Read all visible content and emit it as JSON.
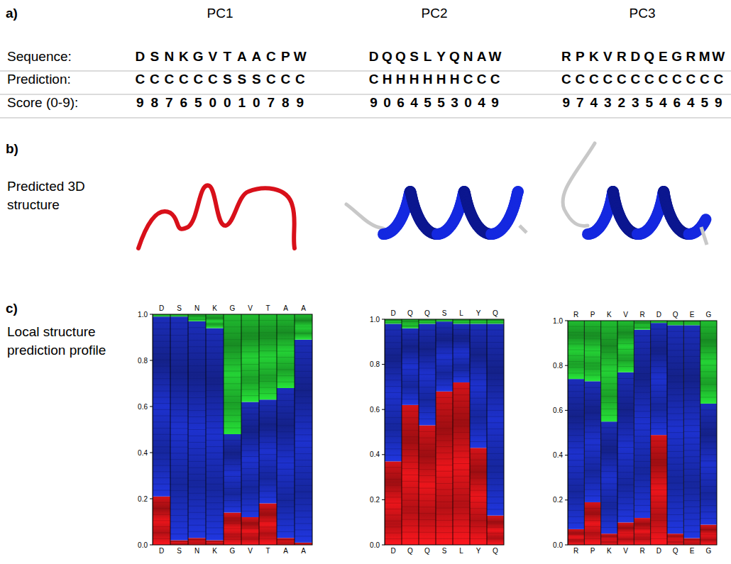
{
  "panel_a": {
    "letter": "a)",
    "row_labels": [
      "Sequence:",
      "Prediction:",
      "Score (0-9):"
    ],
    "columns": [
      {
        "title": "PC1",
        "sequence": "DSNKGVTAACPW",
        "prediction": "CCCCCCSSSCCC",
        "score": "987650010789"
      },
      {
        "title": "PC2",
        "sequence": "DQQSLYQNAW",
        "prediction": "CHHHHHHCCC",
        "score": "9064553049"
      },
      {
        "title": "PC3",
        "sequence": "RPKVRDQEGRMW",
        "prediction": "CCCCCCCCCCCC",
        "score": "974323546459"
      }
    ]
  },
  "panel_b": {
    "letter": "b)",
    "label": "Predicted 3D structure"
  },
  "panel_c": {
    "letter": "c)",
    "label": "Local structure prediction profile"
  },
  "chart_data": [
    {
      "type": "bar",
      "stacked": true,
      "categories": [
        "D",
        "S",
        "N",
        "K",
        "G",
        "V",
        "T",
        "A",
        "A"
      ],
      "ylim": [
        0,
        1
      ],
      "yticks": [
        {
          "value": 0,
          "label": "0.0"
        },
        {
          "value": 0.2,
          "label": "0.2"
        },
        {
          "value": 0.4,
          "label": "0.4"
        },
        {
          "value": 0.6,
          "label": "0.6"
        },
        {
          "value": 0.8,
          "label": "0.8"
        },
        {
          "value": 1,
          "label": "1.0"
        }
      ],
      "series": [
        {
          "color": "#e0141a",
          "values": [
            0.21,
            0.02,
            0.03,
            0.02,
            0.14,
            0.12,
            0.18,
            0.03,
            0.01
          ]
        },
        {
          "color": "#1c2fc4",
          "values": [
            0.78,
            0.97,
            0.94,
            0.92,
            0.34,
            0.5,
            0.45,
            0.65,
            0.88
          ]
        },
        {
          "color": "#22c832",
          "values": [
            0.01,
            0.01,
            0.03,
            0.06,
            0.52,
            0.38,
            0.37,
            0.32,
            0.11
          ]
        }
      ]
    },
    {
      "type": "bar",
      "stacked": true,
      "categories": [
        "D",
        "Q",
        "Q",
        "S",
        "L",
        "Y",
        "Q"
      ],
      "ylim": [
        0,
        1
      ],
      "yticks": [
        {
          "value": 0,
          "label": "0.0"
        },
        {
          "value": 0.2,
          "label": "0.2"
        },
        {
          "value": 0.4,
          "label": "0.4"
        },
        {
          "value": 0.6,
          "label": "0.6"
        },
        {
          "value": 0.8,
          "label": "0.8"
        },
        {
          "value": 1,
          "label": "1.0"
        }
      ],
      "series": [
        {
          "color": "#e0141a",
          "values": [
            0.37,
            0.62,
            0.53,
            0.68,
            0.72,
            0.43,
            0.13
          ]
        },
        {
          "color": "#1c2fc4",
          "values": [
            0.61,
            0.34,
            0.45,
            0.31,
            0.26,
            0.55,
            0.85
          ]
        },
        {
          "color": "#22c832",
          "values": [
            0.02,
            0.04,
            0.02,
            0.01,
            0.02,
            0.02,
            0.02
          ]
        }
      ]
    },
    {
      "type": "bar",
      "stacked": true,
      "categories": [
        "R",
        "P",
        "K",
        "V",
        "R",
        "D",
        "Q",
        "E",
        "G"
      ],
      "ylim": [
        0,
        1
      ],
      "yticks": [
        {
          "value": 0,
          "label": "0.0"
        },
        {
          "value": 0.2,
          "label": "0.2"
        },
        {
          "value": 0.4,
          "label": "0.4"
        },
        {
          "value": 0.6,
          "label": "0.6"
        },
        {
          "value": 0.8,
          "label": "0.8"
        },
        {
          "value": 1,
          "label": "1.0"
        }
      ],
      "series": [
        {
          "color": "#e0141a",
          "values": [
            0.07,
            0.19,
            0.05,
            0.1,
            0.12,
            0.49,
            0.05,
            0.03,
            0.09
          ]
        },
        {
          "color": "#1c2fc4",
          "values": [
            0.67,
            0.54,
            0.5,
            0.67,
            0.84,
            0.5,
            0.93,
            0.95,
            0.54
          ]
        },
        {
          "color": "#22c832",
          "values": [
            0.26,
            0.27,
            0.45,
            0.23,
            0.04,
            0.01,
            0.02,
            0.02,
            0.37
          ]
        }
      ]
    }
  ]
}
